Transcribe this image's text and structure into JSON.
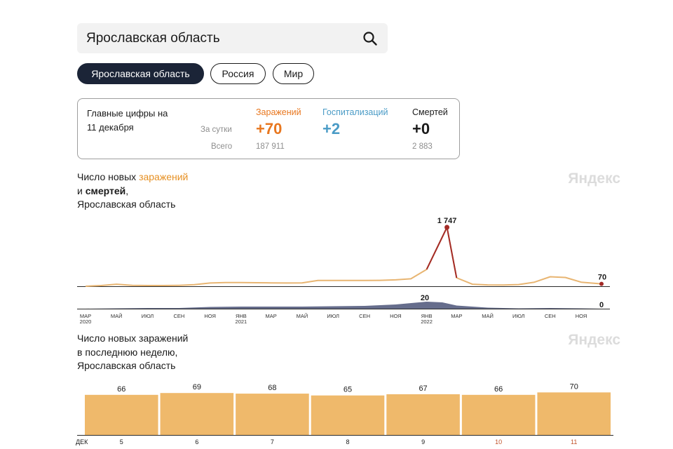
{
  "search": {
    "value": "Ярославская область",
    "icon": "search-icon"
  },
  "chips": [
    "Ярославская область",
    "Россия",
    "Мир"
  ],
  "summary": {
    "title_line1": "Главные цифры на",
    "title_line2": "11 декабря",
    "row_day_label": "За сутки",
    "row_total_label": "Всего",
    "infections": {
      "label": "Заражений",
      "day": "+70",
      "total": "187 911",
      "color": "#e8771f"
    },
    "hospitalizations": {
      "label": "Госпитализаций",
      "day": "+2",
      "total": "",
      "color": "#4a9bc6"
    },
    "deaths": {
      "label": "Смертей",
      "day": "+0",
      "total": "2 883",
      "color": "#1a1a1a"
    }
  },
  "chart1": {
    "title_part1": "Число новых ",
    "title_highlight": "заражений",
    "title_and": "и ",
    "title_bold": "смертей",
    "title_comma": ",",
    "title_region": "Ярославская область",
    "watermark": "Яндекс",
    "peak_label": "1 747",
    "last_label": "70",
    "death_peak_label": "20",
    "death_last_label": "0",
    "x_ticks": [
      {
        "m": "МАР",
        "y": "2020"
      },
      {
        "m": "МАЙ",
        "y": ""
      },
      {
        "m": "ИЮЛ",
        "y": ""
      },
      {
        "m": "СЕН",
        "y": ""
      },
      {
        "m": "НОЯ",
        "y": ""
      },
      {
        "m": "ЯНВ",
        "y": "2021"
      },
      {
        "m": "МАР",
        "y": ""
      },
      {
        "m": "МАЙ",
        "y": ""
      },
      {
        "m": "ИЮЛ",
        "y": ""
      },
      {
        "m": "СЕН",
        "y": ""
      },
      {
        "m": "НОЯ",
        "y": ""
      },
      {
        "m": "ЯНВ",
        "y": "2022"
      },
      {
        "m": "МАР",
        "y": ""
      },
      {
        "m": "МАЙ",
        "y": ""
      },
      {
        "m": "ИЮЛ",
        "y": ""
      },
      {
        "m": "СЕН",
        "y": ""
      },
      {
        "m": "НОЯ",
        "y": ""
      }
    ]
  },
  "chart2": {
    "title_line1": "Число новых заражений",
    "title_line2": "в последнюю неделю,",
    "title_line3": "Ярославская область",
    "watermark": "Яндекс"
  },
  "chart_data": [
    {
      "type": "line",
      "series": [
        {
          "name": "заражений",
          "color": "#e8b572",
          "peak_color": "#a32b27",
          "x": [
            "2020-03",
            "2020-04",
            "2020-05",
            "2020-06",
            "2020-07",
            "2020-08",
            "2020-09",
            "2020-10",
            "2020-11",
            "2020-12",
            "2021-01",
            "2021-02",
            "2021-03",
            "2021-04",
            "2021-05",
            "2021-06",
            "2021-07",
            "2021-08",
            "2021-09",
            "2021-10",
            "2021-11",
            "2021-12",
            "2022-01",
            "2022-02-10",
            "2022-03",
            "2022-04",
            "2022-05",
            "2022-06",
            "2022-07",
            "2022-08",
            "2022-09",
            "2022-10",
            "2022-11",
            "2022-12-11"
          ],
          "values": [
            0,
            20,
            60,
            25,
            20,
            20,
            25,
            45,
            95,
            110,
            110,
            105,
            100,
            95,
            100,
            170,
            170,
            170,
            170,
            175,
            190,
            220,
            500,
            1747,
            250,
            60,
            40,
            35,
            50,
            120,
            280,
            260,
            120,
            70
          ]
        },
        {
          "name": "смертей",
          "color": "#4b5478",
          "x": [
            "2020-03",
            "2020-05",
            "2020-07",
            "2020-09",
            "2020-11",
            "2021-01",
            "2021-03",
            "2021-05",
            "2021-07",
            "2021-09",
            "2021-11",
            "2022-01",
            "2022-02",
            "2022-03",
            "2022-05",
            "2022-07",
            "2022-09",
            "2022-11",
            "2022-12-11"
          ],
          "values": [
            0,
            1,
            2,
            2,
            5,
            6,
            6,
            6,
            7,
            8,
            12,
            20,
            18,
            9,
            3,
            1,
            2,
            1,
            0
          ]
        }
      ]
    },
    {
      "type": "bar",
      "categories": [
        "5",
        "6",
        "7",
        "8",
        "9",
        "10",
        "11"
      ],
      "month_label": "ДЕК",
      "values": [
        66,
        69,
        68,
        65,
        67,
        66,
        70
      ],
      "weekend_indices": [
        5,
        6
      ],
      "bar_color": "#efb96b",
      "weekend_label_color": "#c1532b"
    }
  ]
}
